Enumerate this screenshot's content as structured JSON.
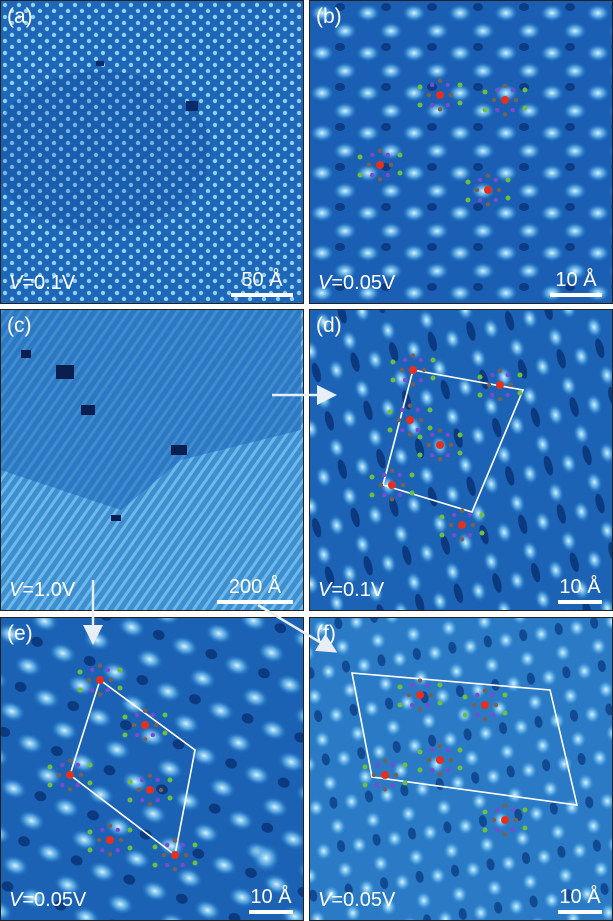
{
  "panels": [
    {
      "label": "(a)",
      "voltage_prefix": "V",
      "voltage_value": "=0.1V",
      "scale": "50 Å"
    },
    {
      "label": "(b)",
      "voltage_prefix": "V",
      "voltage_value": "=0.05V",
      "scale": "10 Å"
    },
    {
      "label": "(c)",
      "voltage_prefix": "V",
      "voltage_value": "=1.0V",
      "scale": "200 Å"
    },
    {
      "label": "(d)",
      "voltage_prefix": "V",
      "voltage_value": "=0.1V",
      "scale": "10 Å"
    },
    {
      "label": "(e)",
      "voltage_prefix": "V",
      "voltage_value": "=0.05V",
      "scale": "10 Å"
    },
    {
      "label": "(f)",
      "voltage_prefix": "V",
      "voltage_value": "=0.05V",
      "scale": "10 Å"
    }
  ],
  "colors": {
    "stm_dark": "#0a2a6a",
    "stm_mid": "#1f6fc0",
    "stm_bright": "#bfe8ff",
    "annotation": "#ffffff",
    "molecule_center": "#e53020",
    "nitrogen": "#7a4bd0",
    "halogen": "#6cc040"
  }
}
